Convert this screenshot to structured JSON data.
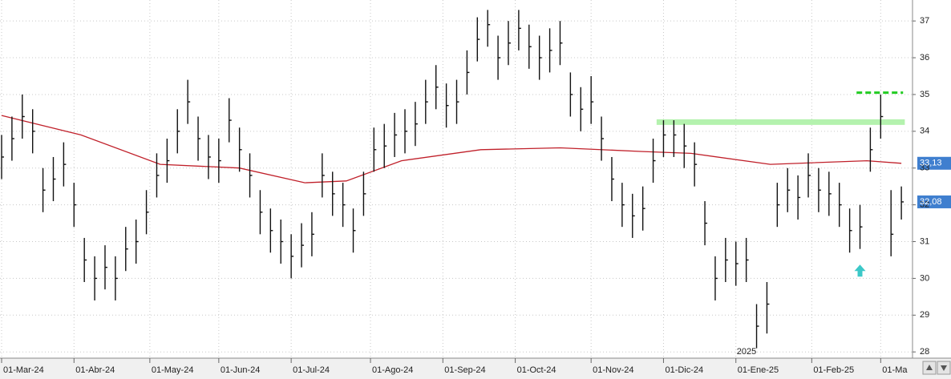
{
  "chart_data": {
    "type": "ohlc",
    "x": [
      0,
      3,
      6,
      9,
      12,
      15,
      18,
      21,
      24,
      27,
      30,
      33,
      36,
      39,
      42,
      45,
      48,
      51,
      54,
      57,
      60,
      63,
      66,
      69,
      72,
      75,
      78,
      81,
      84,
      87,
      90,
      93,
      96,
      99,
      102,
      105,
      108,
      111,
      114,
      117,
      120,
      123,
      126,
      129,
      132,
      135,
      138,
      141,
      144,
      147,
      150,
      153,
      156,
      159,
      162,
      165,
      168,
      171,
      174,
      177,
      180,
      183,
      186,
      189,
      192,
      195,
      198,
      201,
      204,
      207,
      210,
      213,
      216,
      219,
      222,
      225,
      228,
      231,
      234,
      237,
      240,
      243,
      246,
      249,
      252,
      255,
      258,
      261
    ],
    "high": [
      33.9,
      34.4,
      35.0,
      34.6,
      33.0,
      33.3,
      33.7,
      32.6,
      31.1,
      30.6,
      30.9,
      30.6,
      31.4,
      31.6,
      32.4,
      33.4,
      33.8,
      34.6,
      35.4,
      34.4,
      33.9,
      33.8,
      34.9,
      34.1,
      33.4,
      32.4,
      31.9,
      31.6,
      31.2,
      31.5,
      31.8,
      33.4,
      32.9,
      32.6,
      31.9,
      32.9,
      34.1,
      34.2,
      34.5,
      34.6,
      34.8,
      35.4,
      35.8,
      35.3,
      35.4,
      36.2,
      37.1,
      37.3,
      36.6,
      37.0,
      37.3,
      36.9,
      36.6,
      36.8,
      37.0,
      35.6,
      35.2,
      35.5,
      34.4,
      33.3,
      32.6,
      32.3,
      32.5,
      33.8,
      34.3,
      34.3,
      34.2,
      33.7,
      32.1,
      30.6,
      31.1,
      31.0,
      31.1,
      29.3,
      29.9,
      32.6,
      33.0,
      32.8,
      33.4,
      33.0,
      32.9,
      32.6,
      31.9,
      32.0,
      34.1,
      35.0,
      32.4,
      32.5
    ],
    "low": [
      32.7,
      33.2,
      33.8,
      33.4,
      31.8,
      32.1,
      32.5,
      31.4,
      29.9,
      29.4,
      29.7,
      29.4,
      30.2,
      30.4,
      31.2,
      32.2,
      32.6,
      33.4,
      34.2,
      33.2,
      32.7,
      32.6,
      33.7,
      32.9,
      32.2,
      31.2,
      30.7,
      30.4,
      30.0,
      30.3,
      30.6,
      32.2,
      31.7,
      31.4,
      30.7,
      31.7,
      32.9,
      33.0,
      33.3,
      33.4,
      33.6,
      34.2,
      34.6,
      34.1,
      34.2,
      35.0,
      35.9,
      36.3,
      35.4,
      35.8,
      36.2,
      35.7,
      35.4,
      35.6,
      35.8,
      34.4,
      34.0,
      34.2,
      33.2,
      32.1,
      31.4,
      31.1,
      31.3,
      32.6,
      33.3,
      33.3,
      33.0,
      32.5,
      30.9,
      29.4,
      29.9,
      29.8,
      29.9,
      28.1,
      28.5,
      31.4,
      31.8,
      31.6,
      32.2,
      31.8,
      31.7,
      31.4,
      30.7,
      30.8,
      32.9,
      33.8,
      30.6,
      31.6
    ],
    "close": [
      33.3,
      33.8,
      34.4,
      34.0,
      32.4,
      32.7,
      33.1,
      32.0,
      30.5,
      30.0,
      30.3,
      30.0,
      30.8,
      31.0,
      31.8,
      32.8,
      33.2,
      34.0,
      34.8,
      33.8,
      33.3,
      33.2,
      34.3,
      33.5,
      32.8,
      31.8,
      31.3,
      31.0,
      30.6,
      30.9,
      31.2,
      32.8,
      32.3,
      32.0,
      31.3,
      32.3,
      33.5,
      33.6,
      33.9,
      34.0,
      34.2,
      34.8,
      35.2,
      34.7,
      34.8,
      35.6,
      36.5,
      36.9,
      36.0,
      36.4,
      36.8,
      36.3,
      36.0,
      36.2,
      36.4,
      35.0,
      34.6,
      34.8,
      33.8,
      32.7,
      32.0,
      31.7,
      31.9,
      33.2,
      33.9,
      33.9,
      33.6,
      33.1,
      31.5,
      30.0,
      30.5,
      30.4,
      30.5,
      28.7,
      29.3,
      32.0,
      32.4,
      32.2,
      32.8,
      32.4,
      32.3,
      32.0,
      31.3,
      31.4,
      33.5,
      34.4,
      31.2,
      32.08
    ],
    "bar_color": "#111111",
    "moving_average": {
      "color": "#c0202a",
      "x": [
        0,
        23,
        46,
        69,
        88,
        100,
        116,
        139,
        162,
        186,
        200,
        223,
        251,
        261
      ],
      "values": [
        34.43,
        33.9,
        33.1,
        33.0,
        32.6,
        32.65,
        33.2,
        33.5,
        33.55,
        33.45,
        33.4,
        33.1,
        33.2,
        33.13
      ]
    },
    "levels": [
      {
        "value": 34.25,
        "from": 190,
        "to": 262,
        "color": "#b4f2ae",
        "style": "solid"
      },
      {
        "value": 35.05,
        "from": 248,
        "to": 261.5,
        "color": "#22cc22",
        "style": "dashed"
      }
    ],
    "arrow": {
      "x": 249,
      "y": 30.2,
      "color": "#3cc8c8"
    },
    "price_tags": [
      {
        "value": 33.13,
        "label": "33,13",
        "color": "#3f7fcf"
      },
      {
        "value": 32.08,
        "label": "32,08",
        "color": "#3f7fcf"
      }
    ],
    "year_label": {
      "text": "2025",
      "x": 213
    },
    "xlim": [
      0,
      264
    ],
    "xticks": [
      {
        "value": 0,
        "label": "01-Mar-24"
      },
      {
        "value": 21,
        "label": "01-Abr-24"
      },
      {
        "value": 43,
        "label": "01-May-24"
      },
      {
        "value": 63,
        "label": "01-Jun-24"
      },
      {
        "value": 84,
        "label": "01-Jul-24"
      },
      {
        "value": 107,
        "label": "01-Ago-24"
      },
      {
        "value": 128,
        "label": "01-Sep-24"
      },
      {
        "value": 149,
        "label": "01-Oct-24"
      },
      {
        "value": 171,
        "label": "01-Nov-24"
      },
      {
        "value": 192,
        "label": "01-Dic-24"
      },
      {
        "value": 213,
        "label": "01-Ene-25"
      },
      {
        "value": 235,
        "label": "01-Feb-25"
      },
      {
        "value": 255,
        "label": "01-Ma"
      }
    ],
    "ylim": [
      27.83,
      37.57
    ],
    "yticks": [
      28,
      29,
      30,
      31,
      32,
      33,
      34,
      35,
      36,
      37
    ],
    "grid": true
  }
}
